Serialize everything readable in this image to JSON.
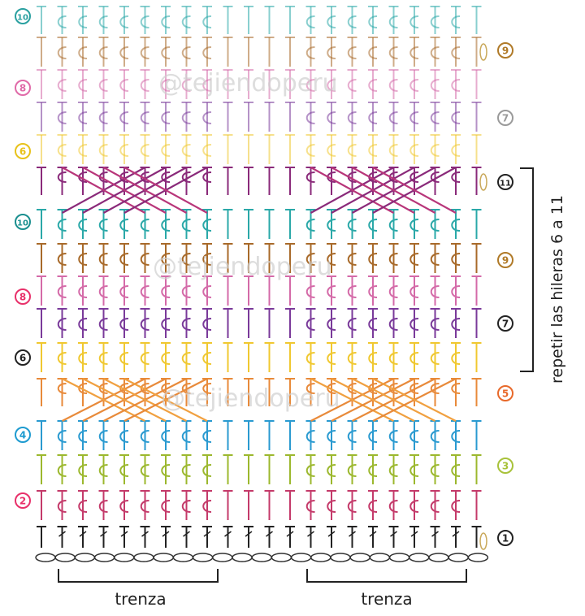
{
  "watermark": "@tejiendoperu",
  "bracket_label": "repetir las hileras 6 a 11",
  "cable_labels": [
    "trenza",
    "trenza"
  ],
  "row_labels": [
    {
      "text": "1",
      "color": "#222222",
      "side": "right"
    },
    {
      "text": "2",
      "color": "#e8306a",
      "side": "left"
    },
    {
      "text": "3",
      "color": "#a8c23a",
      "side": "right"
    },
    {
      "text": "4",
      "color": "#1e9bd0",
      "side": "left"
    },
    {
      "text": "5",
      "color": "#e8692a",
      "side": "right"
    },
    {
      "text": "6",
      "color": "#222222",
      "side": "left"
    },
    {
      "text": "7",
      "color": "#222222",
      "side": "right"
    },
    {
      "text": "8",
      "color": "#e8306a",
      "side": "left"
    },
    {
      "text": "9",
      "color": "#b07a28",
      "side": "right"
    },
    {
      "text": "10",
      "color": "#1a8f8f",
      "side": "left"
    },
    {
      "text": "11",
      "color": "#222222",
      "side": "right"
    },
    {
      "text": "6",
      "color": "#e8c21a",
      "side": "left"
    },
    {
      "text": "7",
      "color": "#9a9a9a",
      "side": "right"
    },
    {
      "text": "8",
      "color": "#e06aa8",
      "side": "left"
    },
    {
      "text": "9",
      "color": "#b07a28",
      "side": "right"
    },
    {
      "text": "10",
      "color": "#2aa0a0",
      "side": "left"
    }
  ],
  "colors": {
    "row1": "#222222",
    "row2": "#c43a6a",
    "row3": "#9cb82e",
    "row4": "#2a9ad0",
    "row5": "#e88a3a",
    "row6": "#f0c830",
    "row7": "#7a3a9a",
    "row8": "#d46aa8",
    "row9": "#a86a2a",
    "row10": "#2aa8a8",
    "row11": "#8a2a7a",
    "chain": "#333333",
    "faded": 0.55
  }
}
